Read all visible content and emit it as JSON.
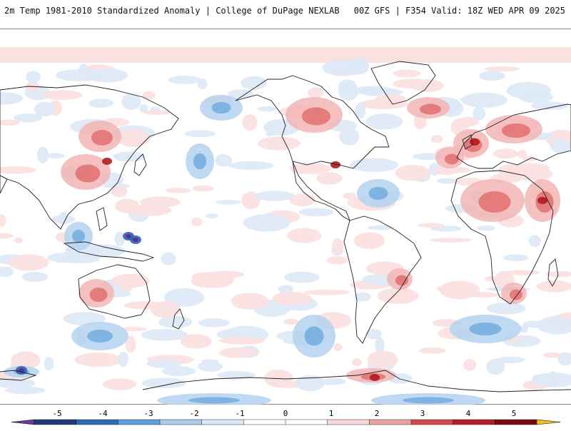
{
  "header": {
    "title_left": "2m Temp 1981-2010 Standardized Anomaly | College of DuPage NEXLAB",
    "title_right": "00Z GFS | F354 Valid: 18Z WED APR 09 2025"
  },
  "colorbar": {
    "ticks": [
      "-5",
      "-4",
      "-3",
      "-2",
      "-1",
      "0",
      "1",
      "2",
      "3",
      "4",
      "5"
    ],
    "segment_colors": [
      "#6a3d9a",
      "#223a73",
      "#2d6bb8",
      "#5e9fdd",
      "#a9cdef",
      "#dbe9f7",
      "#ffffff",
      "#ffffff",
      "#f7d9d9",
      "#eda2a2",
      "#d44a4a",
      "#b11f24",
      "#7a0a10",
      "#f2c01e"
    ]
  },
  "map": {
    "background": "#ffffff",
    "coast_color": "#222222",
    "warm_colors": [
      "#fbe0e0",
      "#f2b5b5",
      "#e06a6a",
      "#b0181e"
    ],
    "cold_colors": [
      "#dde9f6",
      "#b3d2ef",
      "#6fa9df",
      "#2d62b5",
      "#5b2e8c"
    ]
  }
}
